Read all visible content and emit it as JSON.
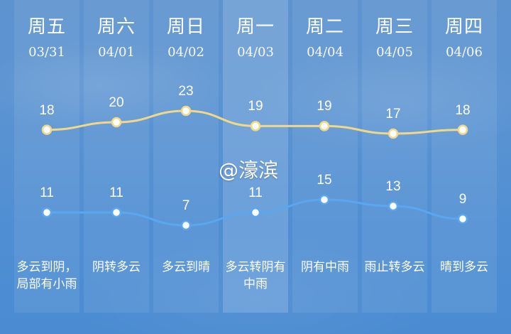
{
  "watermark": "@濠滨",
  "colors": {
    "high_line": "#f1d889",
    "low_line": "#5aa7ef",
    "dot_fill": "#ffffff"
  },
  "days": [
    {
      "weekday": "周五",
      "date": "03/31",
      "condition": "多云到阴，局部有小雨"
    },
    {
      "weekday": "周六",
      "date": "04/01",
      "condition": "阴转多云"
    },
    {
      "weekday": "周日",
      "date": "04/02",
      "condition": "多云到晴"
    },
    {
      "weekday": "周一",
      "date": "04/03",
      "condition": "多云转阴有中雨"
    },
    {
      "weekday": "周二",
      "date": "04/04",
      "condition": "阴有中雨"
    },
    {
      "weekday": "周三",
      "date": "04/05",
      "condition": "雨止转多云"
    },
    {
      "weekday": "周四",
      "date": "04/06",
      "condition": "晴到多云"
    }
  ],
  "chart_data": {
    "type": "line",
    "categories": [
      "03/31",
      "04/01",
      "04/02",
      "04/03",
      "04/04",
      "04/05",
      "04/06"
    ],
    "series": [
      {
        "values": [
          18,
          20,
          23,
          19,
          19,
          17,
          18
        ]
      },
      {
        "values": [
          11,
          11,
          7,
          11,
          15,
          13,
          9
        ]
      }
    ]
  }
}
